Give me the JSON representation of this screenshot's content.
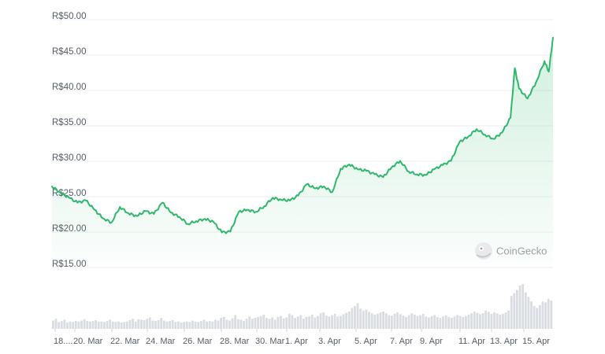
{
  "chart_data": {
    "type": "area",
    "currency_prefix": "R$",
    "y_ticks": [
      "R$50.00",
      "R$45.00",
      "R$40.00",
      "R$35.00",
      "R$30.00",
      "R$25.00",
      "R$20.00",
      "R$15.00"
    ],
    "ylim": [
      15,
      50
    ],
    "x_ticks": [
      "18....",
      "20. Mar",
      "22. Mar",
      "24. Mar",
      "26. Mar",
      "28. Mar",
      "30. Mar",
      "1. Apr",
      "3. Apr",
      "5. Apr",
      "7. Apr",
      "9. Apr",
      "11. Apr",
      "13. Apr",
      "15. Apr"
    ],
    "xlim": [
      "2024-03-18",
      "2024-04-16"
    ],
    "grid": true,
    "line_color": "#2fb86b",
    "series": [
      {
        "values": [
          {
            "x": "2024-03-18",
            "y": 25.9
          },
          {
            "x": "2024-03-18T12",
            "y": 25.0
          },
          {
            "x": "2024-03-19",
            "y": 24.3
          },
          {
            "x": "2024-03-19T12",
            "y": 23.6
          },
          {
            "x": "2024-03-20",
            "y": 23.9
          },
          {
            "x": "2024-03-20T12",
            "y": 22.6
          },
          {
            "x": "2024-03-21",
            "y": 21.4
          },
          {
            "x": "2024-03-21T12",
            "y": 20.8
          },
          {
            "x": "2024-03-22",
            "y": 23.0
          },
          {
            "x": "2024-03-22T12",
            "y": 22.1
          },
          {
            "x": "2024-03-23",
            "y": 21.7
          },
          {
            "x": "2024-03-23T12",
            "y": 22.4
          },
          {
            "x": "2024-03-24",
            "y": 22.0
          },
          {
            "x": "2024-03-24T12",
            "y": 23.6
          },
          {
            "x": "2024-03-25",
            "y": 22.2
          },
          {
            "x": "2024-03-25T12",
            "y": 21.6
          },
          {
            "x": "2024-03-26",
            "y": 20.6
          },
          {
            "x": "2024-03-26T12",
            "y": 21.0
          },
          {
            "x": "2024-03-27",
            "y": 21.3
          },
          {
            "x": "2024-03-27T12",
            "y": 20.9
          },
          {
            "x": "2024-03-28",
            "y": 19.4
          },
          {
            "x": "2024-03-28T12",
            "y": 19.5
          },
          {
            "x": "2024-03-29",
            "y": 22.3
          },
          {
            "x": "2024-03-29T12",
            "y": 22.6
          },
          {
            "x": "2024-03-30",
            "y": 22.3
          },
          {
            "x": "2024-03-30T12",
            "y": 23.1
          },
          {
            "x": "2024-03-31",
            "y": 24.3
          },
          {
            "x": "2024-03-31T12",
            "y": 24.0
          },
          {
            "x": "2024-04-01",
            "y": 23.9
          },
          {
            "x": "2024-04-01T12",
            "y": 24.6
          },
          {
            "x": "2024-04-02",
            "y": 26.2
          },
          {
            "x": "2024-04-02T12",
            "y": 25.6
          },
          {
            "x": "2024-04-03",
            "y": 25.9
          },
          {
            "x": "2024-04-03T12",
            "y": 25.1
          },
          {
            "x": "2024-04-04",
            "y": 28.4
          },
          {
            "x": "2024-04-04T12",
            "y": 29.0
          },
          {
            "x": "2024-04-05",
            "y": 28.3
          },
          {
            "x": "2024-04-05T12",
            "y": 28.1
          },
          {
            "x": "2024-04-06",
            "y": 27.6
          },
          {
            "x": "2024-04-06T12",
            "y": 27.2
          },
          {
            "x": "2024-04-07",
            "y": 28.6
          },
          {
            "x": "2024-04-07T12",
            "y": 29.5
          },
          {
            "x": "2024-04-08",
            "y": 28.0
          },
          {
            "x": "2024-04-08T12",
            "y": 27.6
          },
          {
            "x": "2024-04-09",
            "y": 27.5
          },
          {
            "x": "2024-04-09T12",
            "y": 28.3
          },
          {
            "x": "2024-04-10",
            "y": 28.9
          },
          {
            "x": "2024-04-10T12",
            "y": 29.5
          },
          {
            "x": "2024-04-11",
            "y": 32.2
          },
          {
            "x": "2024-04-11T12",
            "y": 32.9
          },
          {
            "x": "2024-04-12",
            "y": 34.0
          },
          {
            "x": "2024-04-12T12",
            "y": 33.2
          },
          {
            "x": "2024-04-13",
            "y": 32.6
          },
          {
            "x": "2024-04-13T12",
            "y": 33.5
          },
          {
            "x": "2024-04-14",
            "y": 35.6
          },
          {
            "x": "2024-04-14T06",
            "y": 42.6
          },
          {
            "x": "2024-04-14T12",
            "y": 39.7
          },
          {
            "x": "2024-04-15",
            "y": 38.3
          },
          {
            "x": "2024-04-15T12",
            "y": 40.6
          },
          {
            "x": "2024-04-16",
            "y": 43.6
          },
          {
            "x": "2024-04-16T06",
            "y": 42.1
          },
          {
            "x": "2024-04-16T12",
            "y": 46.9
          }
        ]
      }
    ],
    "volume": [
      0.18,
      0.22,
      0.15,
      0.17,
      0.2,
      0.14,
      0.16,
      0.15,
      0.17,
      0.16,
      0.18,
      0.21,
      0.17,
      0.16,
      0.17,
      0.19,
      0.16,
      0.16,
      0.15,
      0.17,
      0.2,
      0.16,
      0.15,
      0.16,
      0.14,
      0.15,
      0.16,
      0.19,
      0.22,
      0.16,
      0.21,
      0.2,
      0.19,
      0.22,
      0.25,
      0.18,
      0.17,
      0.19,
      0.24,
      0.18,
      0.16,
      0.17,
      0.19,
      0.15,
      0.16,
      0.14,
      0.15,
      0.16,
      0.15,
      0.18,
      0.16,
      0.15,
      0.17,
      0.2,
      0.16,
      0.17,
      0.16,
      0.2,
      0.18,
      0.24,
      0.26,
      0.2,
      0.18,
      0.23,
      0.3,
      0.21,
      0.2,
      0.17,
      0.22,
      0.27,
      0.22,
      0.24,
      0.26,
      0.28,
      0.31,
      0.24,
      0.22,
      0.25,
      0.2,
      0.26,
      0.28,
      0.23,
      0.25,
      0.33,
      0.3,
      0.24,
      0.27,
      0.3,
      0.22,
      0.26,
      0.27,
      0.31,
      0.25,
      0.28,
      0.34,
      0.36,
      0.29,
      0.27,
      0.3,
      0.33,
      0.27,
      0.28,
      0.32,
      0.35,
      0.38,
      0.46,
      0.5,
      0.56,
      0.44,
      0.4,
      0.42,
      0.37,
      0.34,
      0.31,
      0.33,
      0.36,
      0.38,
      0.34,
      0.3,
      0.29,
      0.33,
      0.36,
      0.32,
      0.29,
      0.26,
      0.3,
      0.34,
      0.31,
      0.28,
      0.3,
      0.33,
      0.27,
      0.25,
      0.28,
      0.3,
      0.26,
      0.24,
      0.27,
      0.29,
      0.26,
      0.24,
      0.27,
      0.3,
      0.28,
      0.26,
      0.28,
      0.31,
      0.34,
      0.38,
      0.35,
      0.32,
      0.34,
      0.4,
      0.37,
      0.33,
      0.36,
      0.34,
      0.31,
      0.33,
      0.36,
      0.4,
      0.72,
      0.78,
      0.85,
      0.95,
      0.98,
      0.8,
      0.7,
      0.6,
      0.5,
      0.46,
      0.52,
      0.6,
      0.58,
      0.66,
      0.62
    ]
  },
  "watermark": {
    "brand_text": "CoinGecko",
    "icon": "gecko-logo-icon"
  }
}
